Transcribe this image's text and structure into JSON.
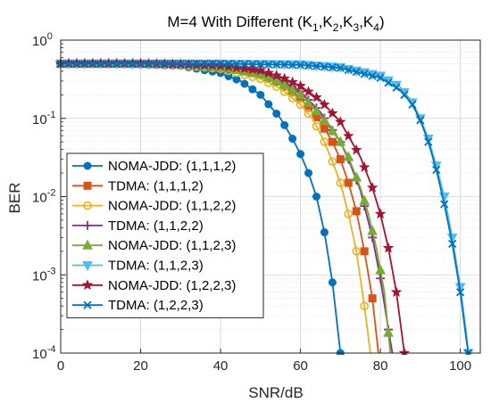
{
  "chart_data": {
    "type": "line",
    "title": {
      "main": "M=4 With Different (K",
      "parts": [
        {
          "text": "1",
          "sub": true
        },
        {
          "text": ",K",
          "sub": false
        },
        {
          "text": "2",
          "sub": true
        },
        {
          "text": ",K",
          "sub": false
        },
        {
          "text": "3",
          "sub": true
        },
        {
          "text": ",K",
          "sub": false
        },
        {
          "text": "4",
          "sub": true
        },
        {
          "text": ")",
          "sub": false
        }
      ]
    },
    "xlabel": "SNR/dB",
    "ylabel": "BER",
    "xlim": [
      0,
      105
    ],
    "ylim_log10": [
      -4,
      0
    ],
    "y_scale": "log",
    "grid": true,
    "legend_position": "lower-left",
    "x_ticks": [
      {
        "value": 0,
        "label": "0"
      },
      {
        "value": 20,
        "label": "20"
      },
      {
        "value": 40,
        "label": "40"
      },
      {
        "value": 60,
        "label": "60"
      },
      {
        "value": 80,
        "label": "80"
      },
      {
        "value": 100,
        "label": "100"
      }
    ],
    "y_ticks": [
      {
        "exp": 0,
        "base": "10",
        "sup": "0"
      },
      {
        "exp": -1,
        "base": "10",
        "sup": "-1"
      },
      {
        "exp": -2,
        "base": "10",
        "sup": "-2"
      },
      {
        "exp": -3,
        "base": "10",
        "sup": "-3"
      },
      {
        "exp": -4,
        "base": "10",
        "sup": "-4"
      }
    ],
    "series": [
      {
        "name": "NOMA-JDD: (1,1,1,2)",
        "color": "#0072BD",
        "marker": "circle-filled",
        "points": [
          [
            0,
            0.5
          ],
          [
            10,
            0.5
          ],
          [
            20,
            0.49
          ],
          [
            30,
            0.47
          ],
          [
            40,
            0.38
          ],
          [
            45,
            0.3
          ],
          [
            50,
            0.2
          ],
          [
            55,
            0.1
          ],
          [
            58,
            0.055
          ],
          [
            60,
            0.035
          ],
          [
            62,
            0.02
          ],
          [
            64,
            0.01
          ],
          [
            66,
            0.0035
          ],
          [
            68,
            0.0008
          ],
          [
            70,
            0.0001
          ]
        ]
      },
      {
        "name": "TDMA: (1,1,1,2)",
        "color": "#D95319",
        "marker": "square",
        "points": [
          [
            0,
            0.5
          ],
          [
            10,
            0.5
          ],
          [
            20,
            0.5
          ],
          [
            30,
            0.49
          ],
          [
            40,
            0.46
          ],
          [
            50,
            0.36
          ],
          [
            55,
            0.28
          ],
          [
            60,
            0.18
          ],
          [
            65,
            0.09
          ],
          [
            68,
            0.05
          ],
          [
            70,
            0.03
          ],
          [
            72,
            0.015
          ],
          [
            74,
            0.0065
          ],
          [
            76,
            0.002
          ],
          [
            78,
            0.0005
          ],
          [
            79.5,
            0.0001
          ]
        ]
      },
      {
        "name": "NOMA-JDD: (1,1,2,2)",
        "color": "#EDB120",
        "marker": "circle-open",
        "points": [
          [
            0,
            0.5
          ],
          [
            10,
            0.5
          ],
          [
            20,
            0.5
          ],
          [
            30,
            0.48
          ],
          [
            40,
            0.43
          ],
          [
            50,
            0.32
          ],
          [
            55,
            0.24
          ],
          [
            60,
            0.15
          ],
          [
            63,
            0.1
          ],
          [
            66,
            0.05
          ],
          [
            68,
            0.028
          ],
          [
            70,
            0.015
          ],
          [
            72,
            0.006
          ],
          [
            74,
            0.002
          ],
          [
            76,
            0.0004
          ],
          [
            77.5,
            0.0001
          ]
        ]
      },
      {
        "name": "TDMA: (1,1,2,2)",
        "color": "#7E2F8E",
        "marker": "plus",
        "points": [
          [
            0,
            0.5
          ],
          [
            10,
            0.5
          ],
          [
            20,
            0.5
          ],
          [
            30,
            0.49
          ],
          [
            40,
            0.47
          ],
          [
            50,
            0.39
          ],
          [
            55,
            0.31
          ],
          [
            60,
            0.22
          ],
          [
            65,
            0.12
          ],
          [
            70,
            0.05
          ],
          [
            72,
            0.03
          ],
          [
            75,
            0.012
          ],
          [
            78,
            0.003
          ],
          [
            80,
            0.0009
          ],
          [
            82,
            0.0002
          ],
          [
            83,
            0.0001
          ]
        ]
      },
      {
        "name": "NOMA-JDD: (1,1,2,3)",
        "color": "#77AC30",
        "marker": "triangle-up",
        "points": [
          [
            0,
            0.5
          ],
          [
            10,
            0.5
          ],
          [
            20,
            0.5
          ],
          [
            30,
            0.49
          ],
          [
            40,
            0.45
          ],
          [
            50,
            0.37
          ],
          [
            55,
            0.29
          ],
          [
            60,
            0.2
          ],
          [
            65,
            0.11
          ],
          [
            70,
            0.05
          ],
          [
            72,
            0.032
          ],
          [
            75,
            0.013
          ],
          [
            77,
            0.006
          ],
          [
            79,
            0.0022
          ],
          [
            81,
            0.0006
          ],
          [
            82.5,
            0.0001
          ]
        ]
      },
      {
        "name": "TDMA: (1,1,2,3)",
        "color": "#4DBEEE",
        "marker": "triangle-down",
        "points": [
          [
            0,
            0.5
          ],
          [
            20,
            0.5
          ],
          [
            40,
            0.5
          ],
          [
            60,
            0.49
          ],
          [
            70,
            0.45
          ],
          [
            80,
            0.35
          ],
          [
            85,
            0.25
          ],
          [
            88,
            0.16
          ],
          [
            90,
            0.1
          ],
          [
            92,
            0.055
          ],
          [
            94,
            0.025
          ],
          [
            96,
            0.01
          ],
          [
            98,
            0.003
          ],
          [
            100,
            0.0007
          ],
          [
            101.5,
            0.00018
          ],
          [
            102,
            0.0001
          ]
        ]
      },
      {
        "name": "NOMA-JDD: (1,2,2,3)",
        "color": "#A2142F",
        "marker": "star",
        "points": [
          [
            0,
            0.5
          ],
          [
            10,
            0.5
          ],
          [
            20,
            0.5
          ],
          [
            30,
            0.49
          ],
          [
            40,
            0.47
          ],
          [
            50,
            0.41
          ],
          [
            55,
            0.34
          ],
          [
            60,
            0.26
          ],
          [
            65,
            0.17
          ],
          [
            70,
            0.09
          ],
          [
            75,
            0.032
          ],
          [
            78,
            0.013
          ],
          [
            80,
            0.006
          ],
          [
            82,
            0.0022
          ],
          [
            84,
            0.0006
          ],
          [
            86,
            0.0001
          ]
        ]
      },
      {
        "name": "TDMA: (1,2,2,3)",
        "color": "#0072BD",
        "marker": "x",
        "points": [
          [
            0,
            0.5
          ],
          [
            20,
            0.5
          ],
          [
            40,
            0.5
          ],
          [
            60,
            0.48
          ],
          [
            70,
            0.44
          ],
          [
            80,
            0.33
          ],
          [
            85,
            0.23
          ],
          [
            88,
            0.15
          ],
          [
            90,
            0.095
          ],
          [
            92,
            0.05
          ],
          [
            94,
            0.022
          ],
          [
            96,
            0.008
          ],
          [
            98,
            0.0025
          ],
          [
            100,
            0.0006
          ],
          [
            101.5,
            0.00015
          ],
          [
            102,
            0.0001
          ]
        ]
      }
    ]
  }
}
